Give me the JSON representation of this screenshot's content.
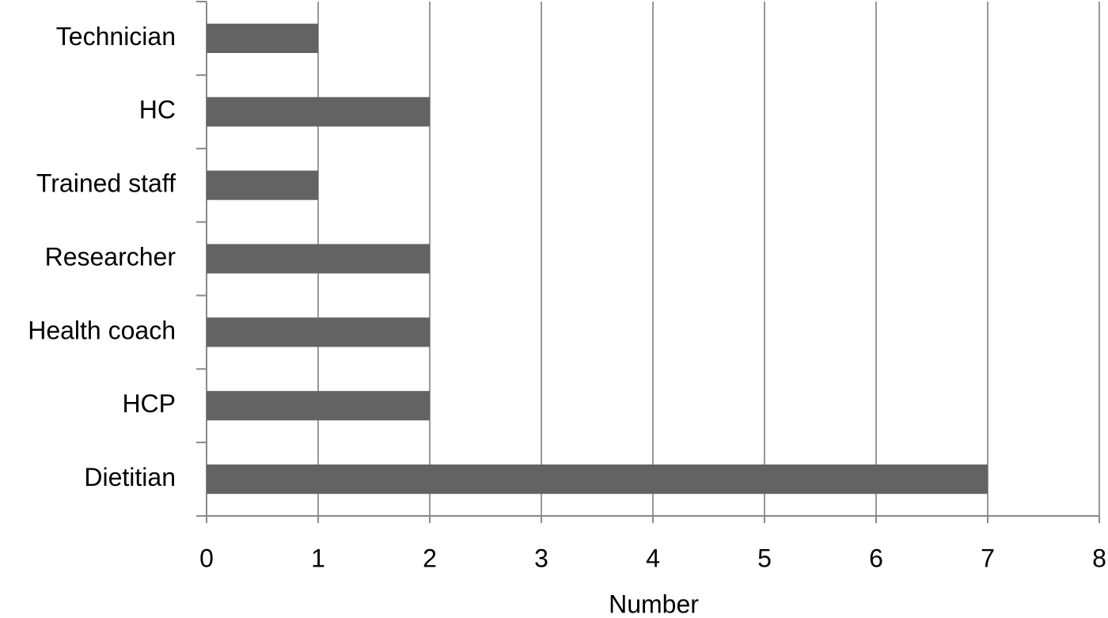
{
  "chart_data": {
    "type": "bar",
    "orientation": "horizontal",
    "categories": [
      "Technician",
      "HC",
      "Trained staff",
      "Researcher",
      "Health coach",
      "HCP",
      "Dietitian"
    ],
    "values": [
      1,
      2,
      1,
      2,
      2,
      2,
      7
    ],
    "color": "#636363",
    "xlabel": "Number",
    "xlim": [
      0,
      8
    ],
    "xticks": [
      0,
      1,
      2,
      3,
      4,
      5,
      6,
      7,
      8
    ],
    "grid": true
  }
}
